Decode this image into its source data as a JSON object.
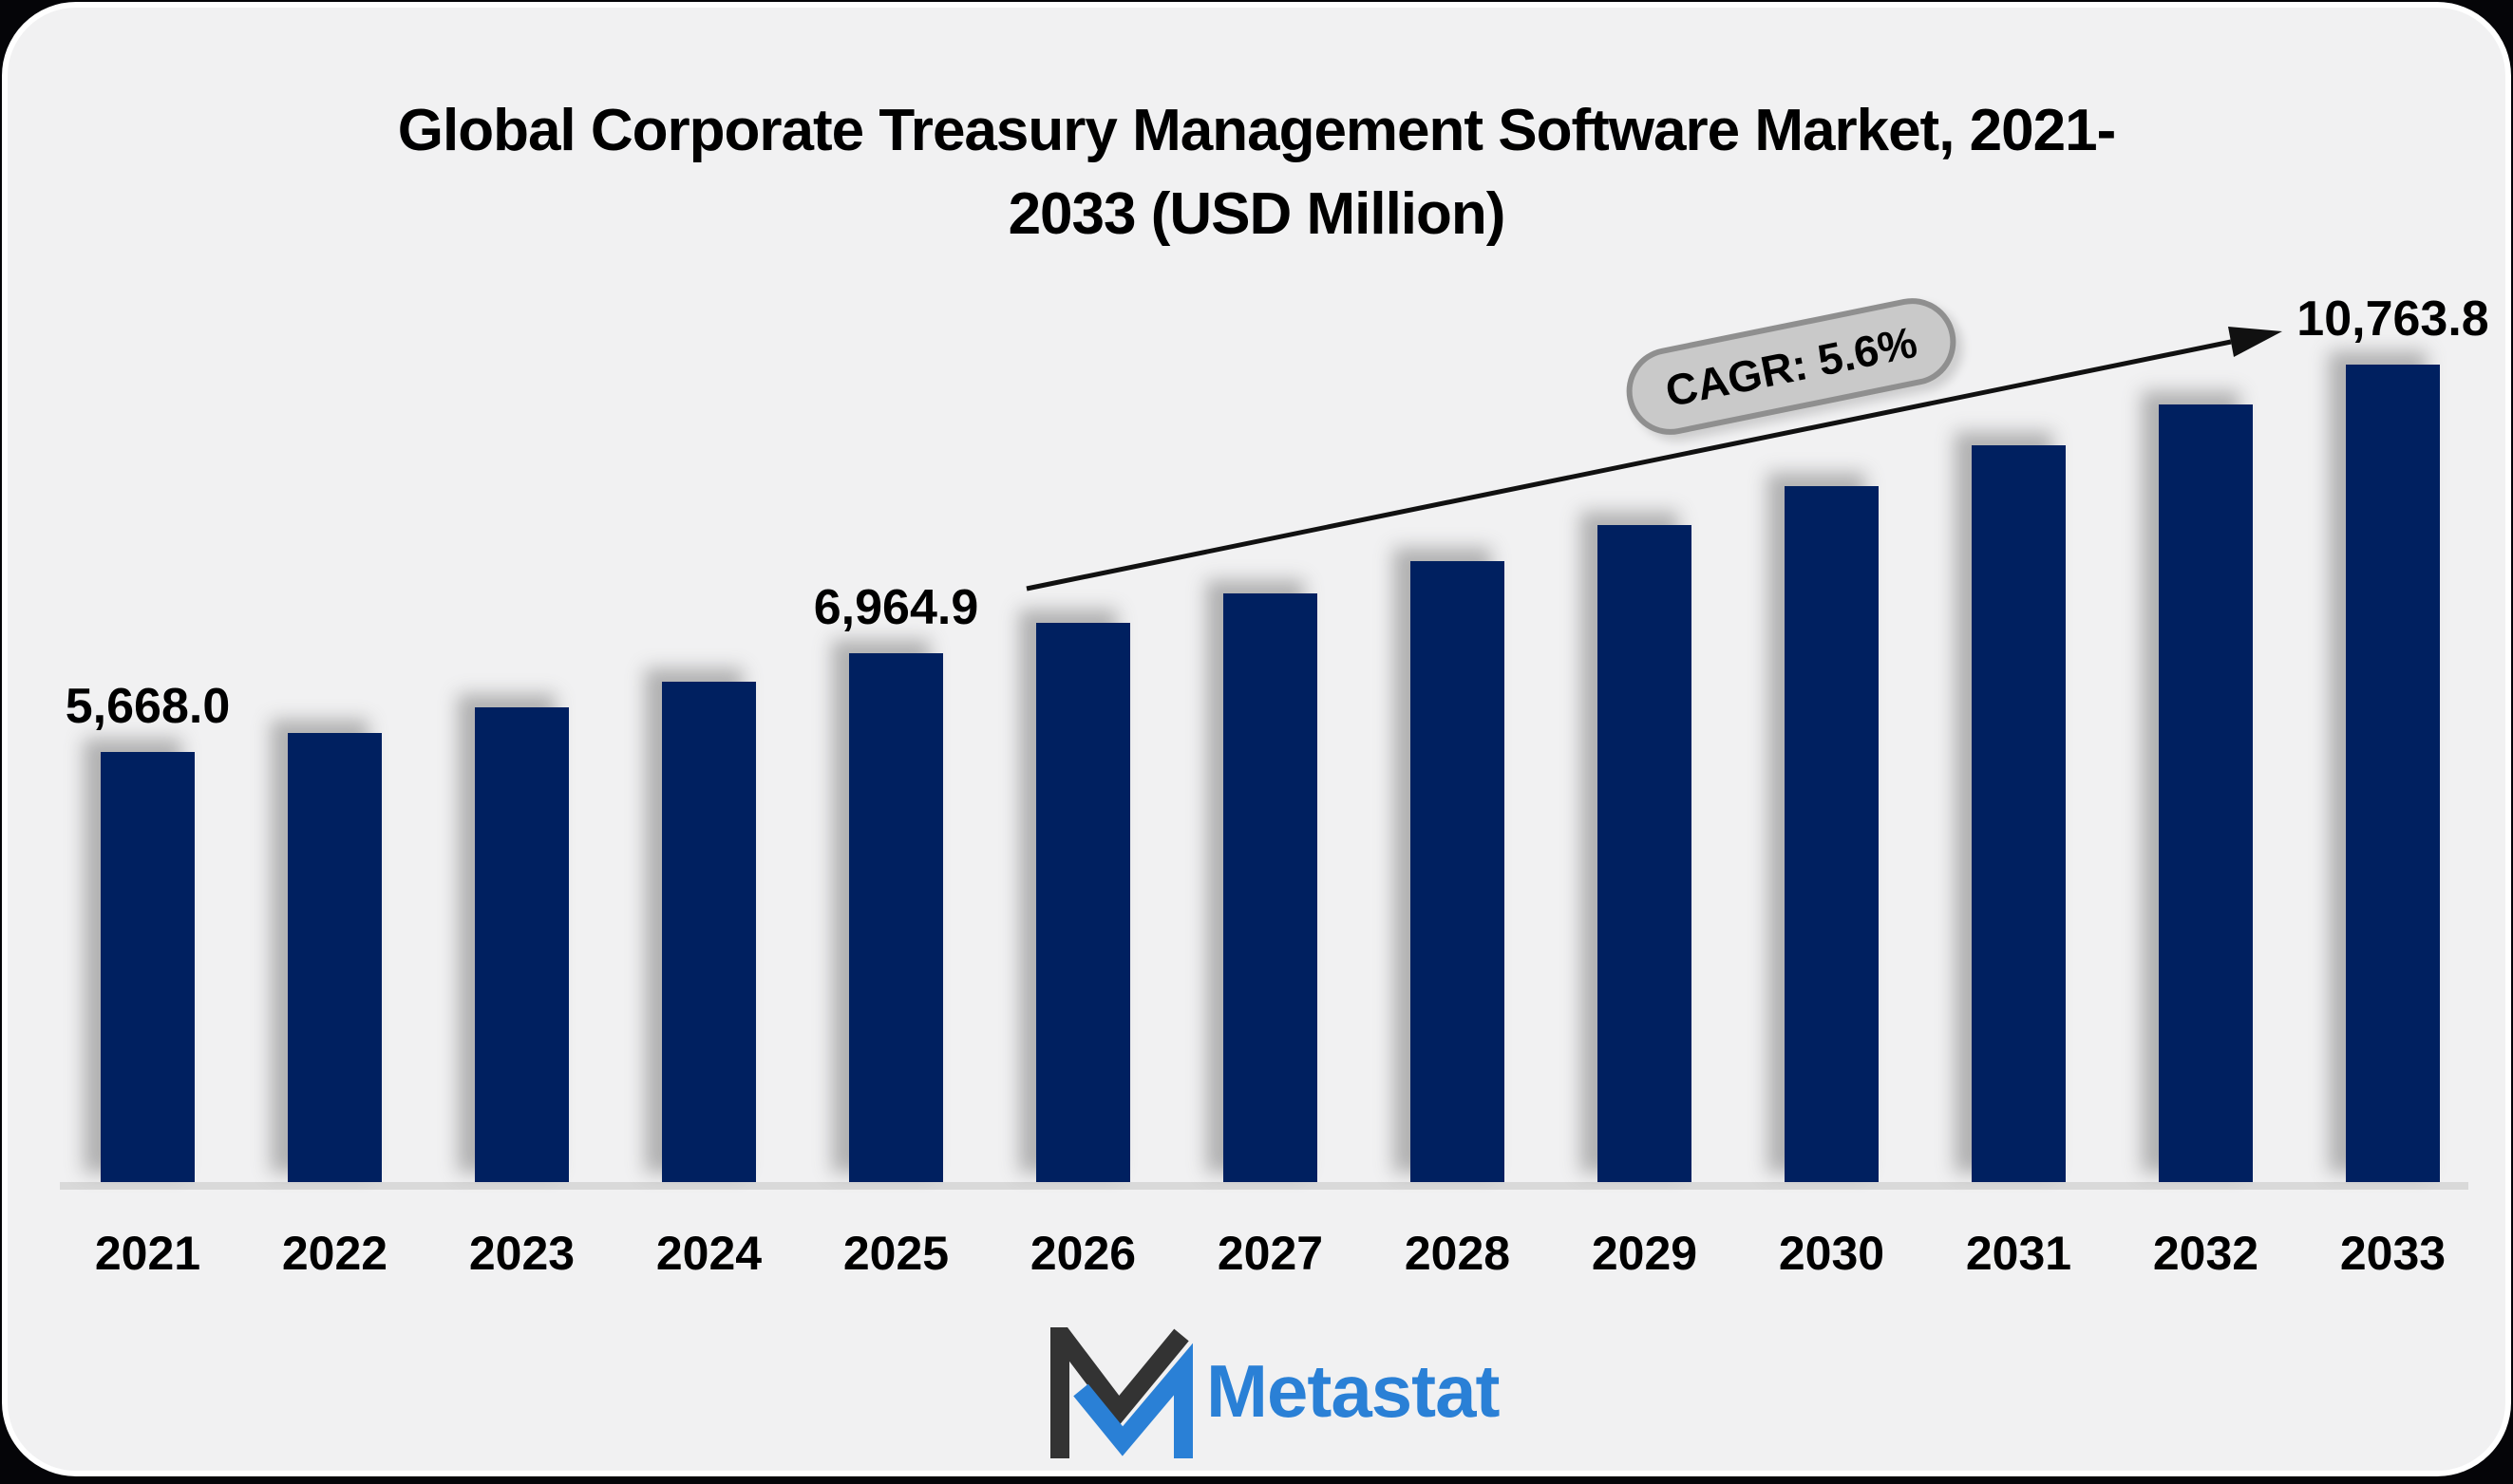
{
  "title": {
    "line1": "Global Corporate Treasury Management Software Market, 2021-",
    "line2": "2033 (USD Million)"
  },
  "annotation": {
    "label": "CAGR: 5.6%"
  },
  "logo": {
    "brand": "Metastat"
  },
  "colors": {
    "bar": "#002060",
    "badge_fill": "#c9c9c9",
    "badge_border": "#8f8f8f",
    "logo_blue": "#2a80d6",
    "logo_dark": "#333333",
    "baseline": "#d9d9d9",
    "card_bg": "#f1f1f2",
    "text": "#000000"
  },
  "chart_data": {
    "type": "bar",
    "title": "Global Corporate Treasury Management Software Market, 2021-2033 (USD Million)",
    "unit": "USD Million",
    "categories": [
      "2021",
      "2022",
      "2023",
      "2024",
      "2025",
      "2026",
      "2027",
      "2028",
      "2029",
      "2030",
      "2031",
      "2032",
      "2033"
    ],
    "values": [
      5668.0,
      5910,
      6246,
      6584,
      6964.9,
      7361,
      7750,
      8176,
      8653,
      9167,
      9706,
      10233,
      10763.8
    ],
    "value_labels": [
      {
        "index": 0,
        "category": "2021",
        "text": "5,668.0"
      },
      {
        "index": 4,
        "category": "2025",
        "text": "6,964.9"
      },
      {
        "index": 12,
        "category": "2033",
        "text": "10,763.8"
      }
    ],
    "cagr": "5.6%",
    "ylim": [
      0,
      10763.8
    ],
    "xlabel": "",
    "ylabel": "",
    "grid": false,
    "legend": false
  }
}
